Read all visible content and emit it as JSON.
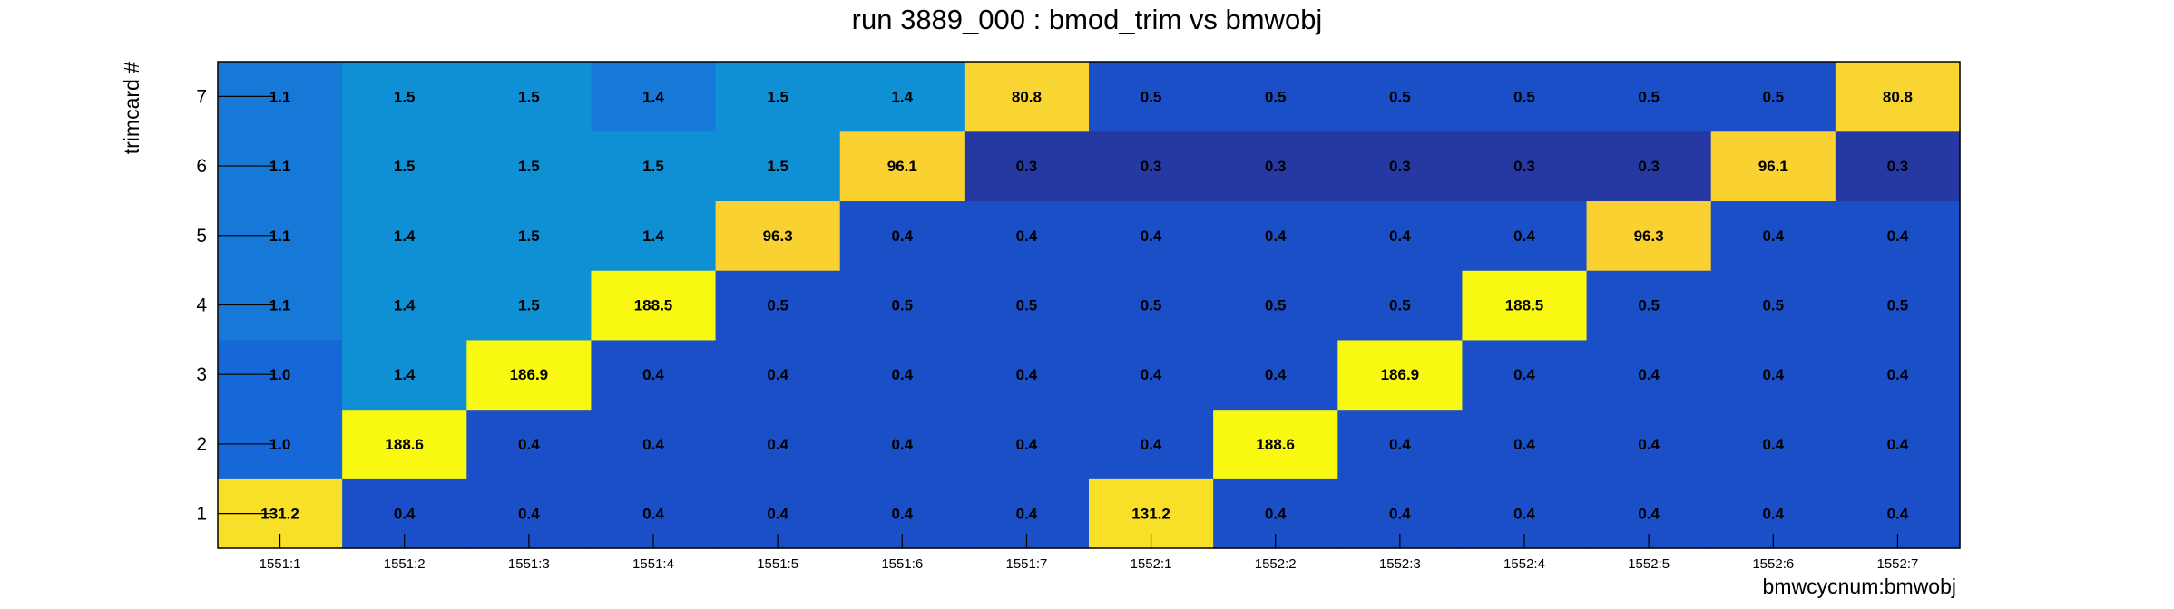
{
  "chart_data": {
    "type": "heatmap",
    "title": "run 3889_000 : bmod_trim vs bmwobj",
    "xlabel": "bmwcycnum:bmwobj",
    "ylabel": "trimcard #",
    "x": [
      "1551:1",
      "1551:2",
      "1551:3",
      "1551:4",
      "1551:5",
      "1551:6",
      "1551:7",
      "1552:1",
      "1552:2",
      "1552:3",
      "1552:4",
      "1552:5",
      "1552:6",
      "1552:7"
    ],
    "y": [
      "1",
      "2",
      "3",
      "4",
      "5",
      "6",
      "7"
    ],
    "values": [
      [
        "131.2",
        "0.4",
        "0.4",
        "0.4",
        "0.4",
        "0.4",
        "0.4",
        "131.2",
        "0.4",
        "0.4",
        "0.4",
        "0.4",
        "0.4",
        "0.4"
      ],
      [
        "1.0",
        "188.6",
        "0.4",
        "0.4",
        "0.4",
        "0.4",
        "0.4",
        "0.4",
        "188.6",
        "0.4",
        "0.4",
        "0.4",
        "0.4",
        "0.4"
      ],
      [
        "1.0",
        "1.4",
        "186.9",
        "0.4",
        "0.4",
        "0.4",
        "0.4",
        "0.4",
        "0.4",
        "186.9",
        "0.4",
        "0.4",
        "0.4",
        "0.4"
      ],
      [
        "1.1",
        "1.4",
        "1.5",
        "188.5",
        "0.5",
        "0.5",
        "0.5",
        "0.5",
        "0.5",
        "0.5",
        "188.5",
        "0.5",
        "0.5",
        "0.5"
      ],
      [
        "1.1",
        "1.4",
        "1.5",
        "1.4",
        "96.3",
        "0.4",
        "0.4",
        "0.4",
        "0.4",
        "0.4",
        "0.4",
        "96.3",
        "0.4",
        "0.4"
      ],
      [
        "1.1",
        "1.5",
        "1.5",
        "1.5",
        "1.5",
        "96.1",
        "0.3",
        "0.3",
        "0.3",
        "0.3",
        "0.3",
        "0.3",
        "96.1",
        "0.3"
      ],
      [
        "1.1",
        "1.5",
        "1.5",
        "1.4",
        "1.5",
        "1.4",
        "80.8",
        "0.5",
        "0.5",
        "0.5",
        "0.5",
        "0.5",
        "0.5",
        "80.8"
      ]
    ],
    "colors": {
      "0.3": "#2639a3",
      "0.4": "#1a4fc8",
      "0.5": "#1a4fc8",
      "1.0": "#1667d8",
      "1.1": "#1679d8",
      "1.4": "#1090d4",
      "1.5": "#1090d4",
      "80.8": "#f9d532",
      "96.1": "#f9d232",
      "96.3": "#f9d232",
      "131.2": "#f8e028",
      "186.9": "#f8f810",
      "188.5": "#f8f810",
      "188.6": "#f8f810"
    },
    "special_colors": [
      {
        "row": 6,
        "col": 3,
        "color": "#1679d8"
      }
    ],
    "grid": false,
    "legend": "none"
  }
}
